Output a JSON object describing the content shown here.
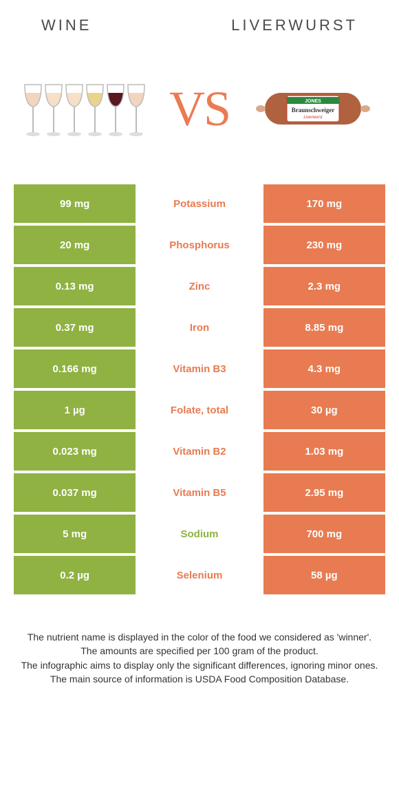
{
  "header": {
    "left_title": "Wine",
    "right_title": "Liverwurst"
  },
  "vs_label": "VS",
  "vs_color": "#ea7b53",
  "colors": {
    "left_food": "#8fb243",
    "right_food": "#e87b51",
    "row_gap_bg": "#ffffff"
  },
  "wine_glass_colors": [
    "#f3d4bf",
    "#f6e0c8",
    "#f6e0c8",
    "#e9d48d",
    "#5a1820",
    "#f3d4bf"
  ],
  "liverwurst": {
    "casing_color": "#b0613d",
    "end_color": "#d9aa8a",
    "label_bg": "#ffffff",
    "label_band": "#2a8a3a",
    "label_text1": "JONES",
    "label_text2": "Braunschweiger",
    "label_text3": "Liverwurst"
  },
  "comparison": {
    "rows": [
      {
        "left": "99 mg",
        "name": "Potassium",
        "right": "170 mg",
        "winner": "right"
      },
      {
        "left": "20 mg",
        "name": "Phosphorus",
        "right": "230 mg",
        "winner": "right"
      },
      {
        "left": "0.13 mg",
        "name": "Zinc",
        "right": "2.3 mg",
        "winner": "right"
      },
      {
        "left": "0.37 mg",
        "name": "Iron",
        "right": "8.85 mg",
        "winner": "right"
      },
      {
        "left": "0.166 mg",
        "name": "Vitamin B3",
        "right": "4.3 mg",
        "winner": "right"
      },
      {
        "left": "1 µg",
        "name": "Folate, total",
        "right": "30 µg",
        "winner": "right"
      },
      {
        "left": "0.023 mg",
        "name": "Vitamin B2",
        "right": "1.03 mg",
        "winner": "right"
      },
      {
        "left": "0.037 mg",
        "name": "Vitamin B5",
        "right": "2.95 mg",
        "winner": "right"
      },
      {
        "left": "5 mg",
        "name": "Sodium",
        "right": "700 mg",
        "winner": "left"
      },
      {
        "left": "0.2 µg",
        "name": "Selenium",
        "right": "58 µg",
        "winner": "right"
      }
    ]
  },
  "footnotes": [
    "The nutrient name is displayed in the color of the food we considered as 'winner'.",
    "The amounts are specified per 100 gram of the product.",
    "The infographic aims to display only the significant differences, ignoring minor ones.",
    "The main source of information is USDA Food Composition Database."
  ]
}
